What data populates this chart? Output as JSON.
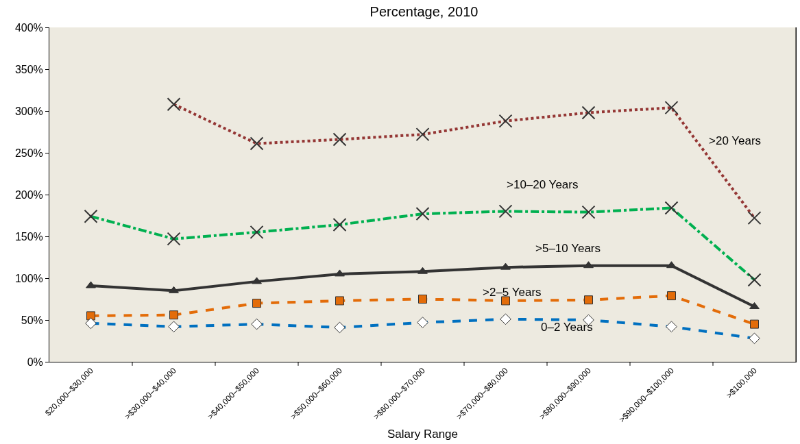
{
  "chart_data": {
    "type": "line",
    "title": "Percentage, 2010",
    "xlabel": "Salary Range",
    "categories": [
      "$20,000–$30,000",
      ">$30,000–$40,000",
      ">$40,000–$50,000",
      ">$50,000–$60,000",
      ">$60,000–$70,000",
      ">$70,000–$80,000",
      ">$80,000–$90,000",
      ">$90,000–$100,000",
      ">$100,000"
    ],
    "series": [
      {
        "name": ">20 Years",
        "color": "#943634",
        "line_style": "dotted",
        "marker": "cross",
        "values": [
          null,
          308,
          261,
          266,
          272,
          288,
          298,
          304,
          172
        ]
      },
      {
        "name": ">10–20 Years",
        "color": "#00b050",
        "line_style": "dashdot",
        "marker": "cross",
        "values": [
          174,
          147,
          155,
          164,
          177,
          180,
          179,
          184,
          98
        ]
      },
      {
        "name": ">5–10 Years",
        "color": "#333333",
        "line_style": "solid",
        "marker": "triangle",
        "values": [
          91,
          85,
          96,
          105,
          108,
          113,
          115,
          115,
          66
        ]
      },
      {
        "name": ">2–5 Years",
        "color": "#e36c09",
        "line_style": "dashed",
        "marker": "square",
        "values": [
          55,
          56,
          70,
          73,
          75,
          73,
          74,
          79,
          45
        ]
      },
      {
        "name": "0–2 Years",
        "color": "#0070c0",
        "line_style": "dashed",
        "marker": "diamond",
        "values": [
          46,
          42,
          45,
          41,
          47,
          51,
          50,
          42,
          28
        ]
      }
    ],
    "ylim": [
      0,
      400
    ],
    "yticks": [
      {
        "value": 0,
        "label": "0%"
      },
      {
        "value": 50,
        "label": "50%"
      },
      {
        "value": 100,
        "label": "100%"
      },
      {
        "value": 150,
        "label": "150%"
      },
      {
        "value": 200,
        "label": "200%"
      },
      {
        "value": 250,
        "label": "250%"
      },
      {
        "value": 300,
        "label": "300%"
      },
      {
        "value": 350,
        "label": "350%"
      },
      {
        "value": 400,
        "label": "400%"
      }
    ],
    "grid": false,
    "legend": false
  }
}
